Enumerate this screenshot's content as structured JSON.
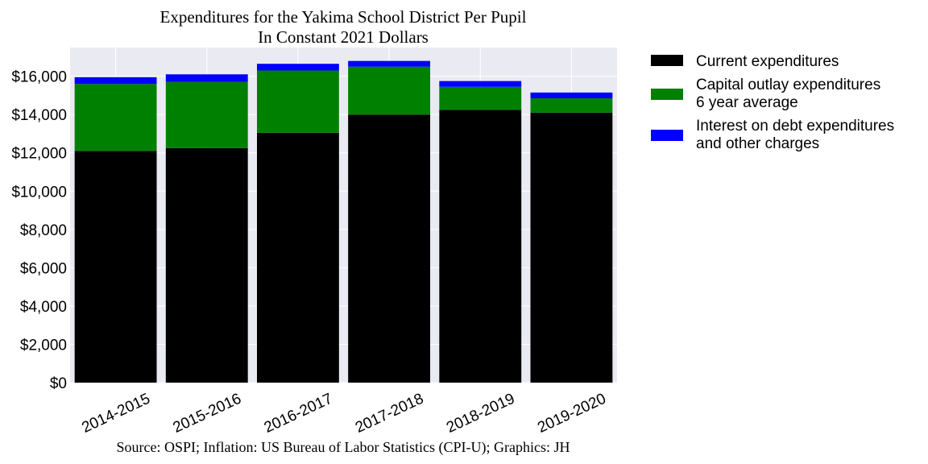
{
  "chart_data": {
    "type": "bar",
    "stacked": true,
    "title": [
      "Expenditures for the Yakima School District Per Pupil",
      "In Constant 2021 Dollars"
    ],
    "xlabel": "",
    "ylabel": "",
    "categories": [
      "2014-2015",
      "2015-2016",
      "2016-2017",
      "2017-2018",
      "2018-2019",
      "2019-2020"
    ],
    "series": [
      {
        "name": "Current expenditures",
        "color": "#000000",
        "values": [
          12100,
          12250,
          13050,
          14000,
          14250,
          14100
        ]
      },
      {
        "name": [
          "Capital outlay expenditures",
          "6 year average"
        ],
        "color": "#008000",
        "values": [
          3500,
          3450,
          3250,
          2500,
          1200,
          750
        ]
      },
      {
        "name": [
          "Interest on debt expenditures",
          "and other charges"
        ],
        "color": "#0000ff",
        "values": [
          350,
          400,
          350,
          300,
          300,
          300
        ]
      }
    ],
    "ylim": [
      0,
      17500
    ],
    "yticks": [
      0,
      2000,
      4000,
      6000,
      8000,
      10000,
      12000,
      14000,
      16000
    ],
    "ytick_labels": [
      "$0",
      "$2,000",
      "$4,000",
      "$6,000",
      "$8,000",
      "$10,000",
      "$12,000",
      "$14,000",
      "$16,000"
    ],
    "grid": true,
    "legend_placement": "outside-right",
    "plot_background": "#eaeaf2",
    "source_note": "Source: OSPI; Inflation: US Bureau of Labor Statistics (CPI-U); Graphics: JH"
  }
}
